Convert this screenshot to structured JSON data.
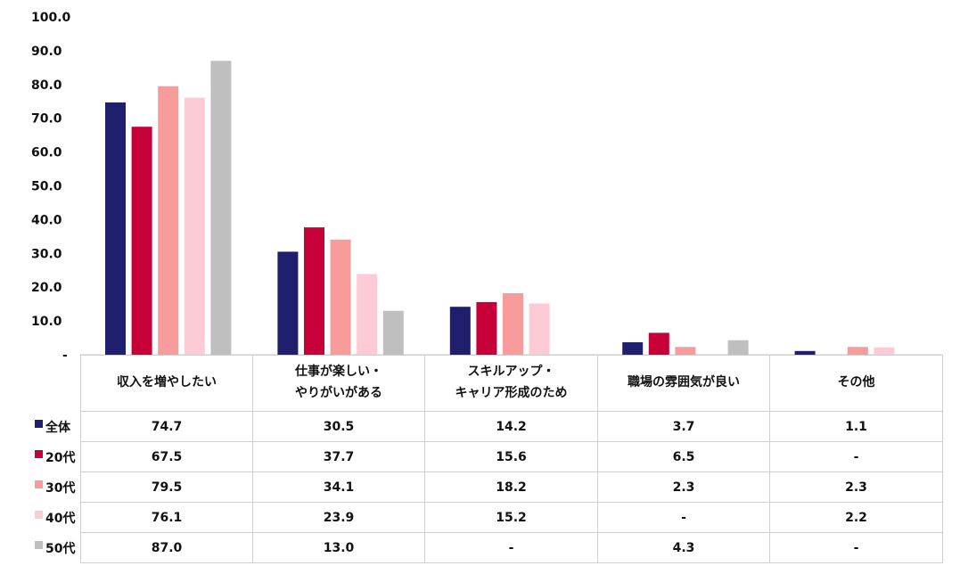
{
  "chart_data": {
    "type": "bar",
    "title": "",
    "ylim": [
      0,
      100
    ],
    "yticks": [
      "-",
      "10.0",
      "20.0",
      "30.0",
      "40.0",
      "50.0",
      "60.0",
      "70.0",
      "80.0",
      "90.0",
      "100.0"
    ],
    "grid": false,
    "legend": "table-left",
    "categories": [
      {
        "line1": "収入を増やしたい",
        "line2": ""
      },
      {
        "line1": "仕事が楽しい・",
        "line2": "やりがいがある"
      },
      {
        "line1": "スキルアップ・",
        "line2": "キャリア形成のため"
      },
      {
        "line1": "職場の雰囲気が良い",
        "line2": ""
      },
      {
        "line1": "その他",
        "line2": ""
      }
    ],
    "series": [
      {
        "name": "全体",
        "color": "#1f1f6e",
        "values": [
          74.7,
          30.5,
          14.2,
          3.7,
          1.1
        ],
        "labels": [
          "74.7",
          "30.5",
          "14.2",
          "3.7",
          "1.1"
        ]
      },
      {
        "name": "20代",
        "color": "#c8003a",
        "values": [
          67.5,
          37.7,
          15.6,
          6.5,
          null
        ],
        "labels": [
          "67.5",
          "37.7",
          "15.6",
          "6.5",
          "-"
        ]
      },
      {
        "name": "30代",
        "color": "#f79b9b",
        "values": [
          79.5,
          34.1,
          18.2,
          2.3,
          2.3
        ],
        "labels": [
          "79.5",
          "34.1",
          "18.2",
          "2.3",
          "2.3"
        ]
      },
      {
        "name": "40代",
        "color": "#fdcbd6",
        "values": [
          76.1,
          23.9,
          15.2,
          null,
          2.2
        ],
        "labels": [
          "76.1",
          "23.9",
          "15.2",
          "-",
          "2.2"
        ]
      },
      {
        "name": "50代",
        "color": "#bfbfbf",
        "values": [
          87.0,
          13.0,
          null,
          4.3,
          null
        ],
        "labels": [
          "87.0",
          "13.0",
          "-",
          "4.3",
          "-"
        ]
      }
    ]
  }
}
